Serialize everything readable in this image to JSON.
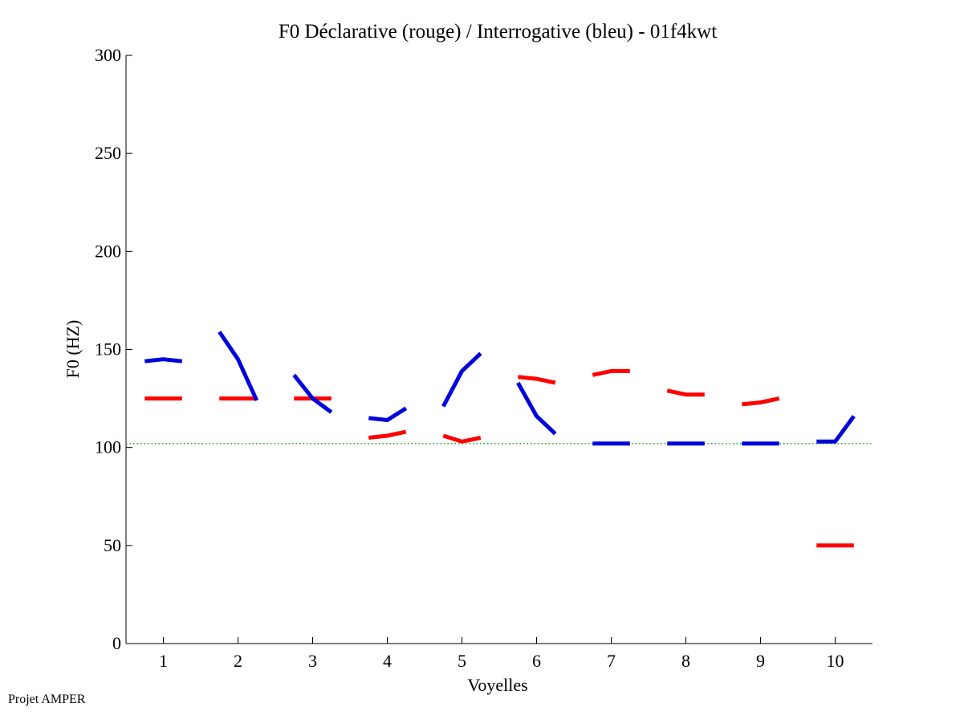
{
  "chart_data": {
    "type": "line",
    "title": "F0 Déclarative (rouge) / Interrogative (bleu) - 01f4kwt",
    "xlabel": "Voyelles",
    "ylabel": "F0 (HZ)",
    "xlim": [
      0.5,
      10.5
    ],
    "ylim": [
      0,
      300
    ],
    "xticks": [
      "1",
      "2",
      "3",
      "4",
      "5",
      "6",
      "7",
      "8",
      "9",
      "10"
    ],
    "yticks": [
      "0",
      "50",
      "100",
      "150",
      "200",
      "250",
      "300"
    ],
    "grid": false,
    "reference_line": {
      "y": 102,
      "color": "#22aa22",
      "style": "dotted"
    },
    "series": [
      {
        "color": "#ff0000",
        "segments": [
          [
            [
              0.75,
              125
            ],
            [
              1.0,
              125
            ],
            [
              1.25,
              125
            ]
          ],
          [
            [
              1.75,
              125
            ],
            [
              2.0,
              125
            ],
            [
              2.25,
              125
            ]
          ],
          [
            [
              2.75,
              125
            ],
            [
              3.0,
              125
            ],
            [
              3.25,
              125
            ]
          ],
          [
            [
              3.75,
              105
            ],
            [
              4.0,
              106
            ],
            [
              4.25,
              108
            ]
          ],
          [
            [
              4.75,
              106
            ],
            [
              5.0,
              103
            ],
            [
              5.25,
              105
            ]
          ],
          [
            [
              5.75,
              136
            ],
            [
              6.0,
              135
            ],
            [
              6.25,
              133
            ]
          ],
          [
            [
              6.75,
              137
            ],
            [
              7.0,
              139
            ],
            [
              7.25,
              139
            ]
          ],
          [
            [
              7.75,
              129
            ],
            [
              8.0,
              127
            ],
            [
              8.25,
              127
            ]
          ],
          [
            [
              8.75,
              122
            ],
            [
              9.0,
              123
            ],
            [
              9.25,
              125
            ]
          ],
          [
            [
              9.75,
              50
            ],
            [
              10.0,
              50
            ],
            [
              10.25,
              50
            ]
          ]
        ]
      },
      {
        "color": "#0000dd",
        "segments": [
          [
            [
              0.75,
              144
            ],
            [
              1.0,
              145
            ],
            [
              1.25,
              144
            ]
          ],
          [
            [
              1.75,
              159
            ],
            [
              2.0,
              145
            ],
            [
              2.25,
              124
            ]
          ],
          [
            [
              2.75,
              137
            ],
            [
              3.0,
              125
            ],
            [
              3.25,
              118
            ]
          ],
          [
            [
              3.75,
              115
            ],
            [
              4.0,
              114
            ],
            [
              4.25,
              120
            ]
          ],
          [
            [
              4.75,
              121
            ],
            [
              5.0,
              139
            ],
            [
              5.25,
              148
            ]
          ],
          [
            [
              5.75,
              133
            ],
            [
              6.0,
              116
            ],
            [
              6.25,
              107
            ]
          ],
          [
            [
              6.75,
              102
            ],
            [
              7.0,
              102
            ],
            [
              7.25,
              102
            ]
          ],
          [
            [
              7.75,
              102
            ],
            [
              8.0,
              102
            ],
            [
              8.25,
              102
            ]
          ],
          [
            [
              8.75,
              102
            ],
            [
              9.0,
              102
            ],
            [
              9.25,
              102
            ]
          ],
          [
            [
              9.75,
              103
            ],
            [
              10.0,
              103
            ],
            [
              10.25,
              116
            ]
          ]
        ]
      }
    ]
  },
  "footer": {
    "text": "Projet AMPER"
  }
}
